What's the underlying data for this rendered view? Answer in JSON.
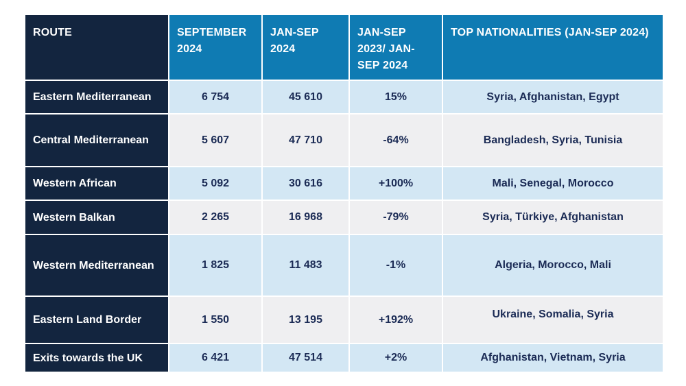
{
  "chart_data": {
    "type": "table",
    "columns": [
      "ROUTE",
      "SEPTEMBER 2024",
      "JAN-SEP 2024",
      "JAN-SEP 2023/ JAN-SEP 2024",
      "TOP NATIONALITIES (JAN-SEP 2024)"
    ],
    "rows": [
      {
        "route": "Eastern Mediterranean",
        "september_2024": "6 754",
        "jan_sep_2024": "45 610",
        "change": "15%",
        "top_nationalities": "Syria, Afghanistan, Egypt"
      },
      {
        "route": "Central Mediterranean",
        "september_2024": "5 607",
        "jan_sep_2024": "47 710",
        "change": "-64%",
        "top_nationalities": "Bangladesh, Syria, Tunisia"
      },
      {
        "route": "Western African",
        "september_2024": "5 092",
        "jan_sep_2024": "30 616",
        "change": "+100%",
        "top_nationalities": "Mali, Senegal, Morocco"
      },
      {
        "route": "Western Balkan",
        "september_2024": "2 265",
        "jan_sep_2024": "16 968",
        "change": "-79%",
        "top_nationalities": "Syria, Türkiye, Afghanistan"
      },
      {
        "route": "Western Mediterranean",
        "september_2024": "1 825",
        "jan_sep_2024": "11 483",
        "change": "-1%",
        "top_nationalities": "Algeria, Morocco, Mali"
      },
      {
        "route": "Eastern Land Border",
        "september_2024": "1 550",
        "jan_sep_2024": "13 195",
        "change": "+192%",
        "top_nationalities": "Ukraine, Somalia, Syria"
      },
      {
        "route": "Exits towards the UK",
        "september_2024": "6 421",
        "jan_sep_2024": "47 514",
        "change": "+2%",
        "top_nationalities": "Afghanistan, Vietnam, Syria"
      }
    ]
  },
  "colors": {
    "route_column": "#13253f",
    "header_blue": "#0f7bb3",
    "row_light_blue": "#d3e7f4",
    "row_grey": "#efeff1",
    "value_text": "#1b2b55"
  }
}
